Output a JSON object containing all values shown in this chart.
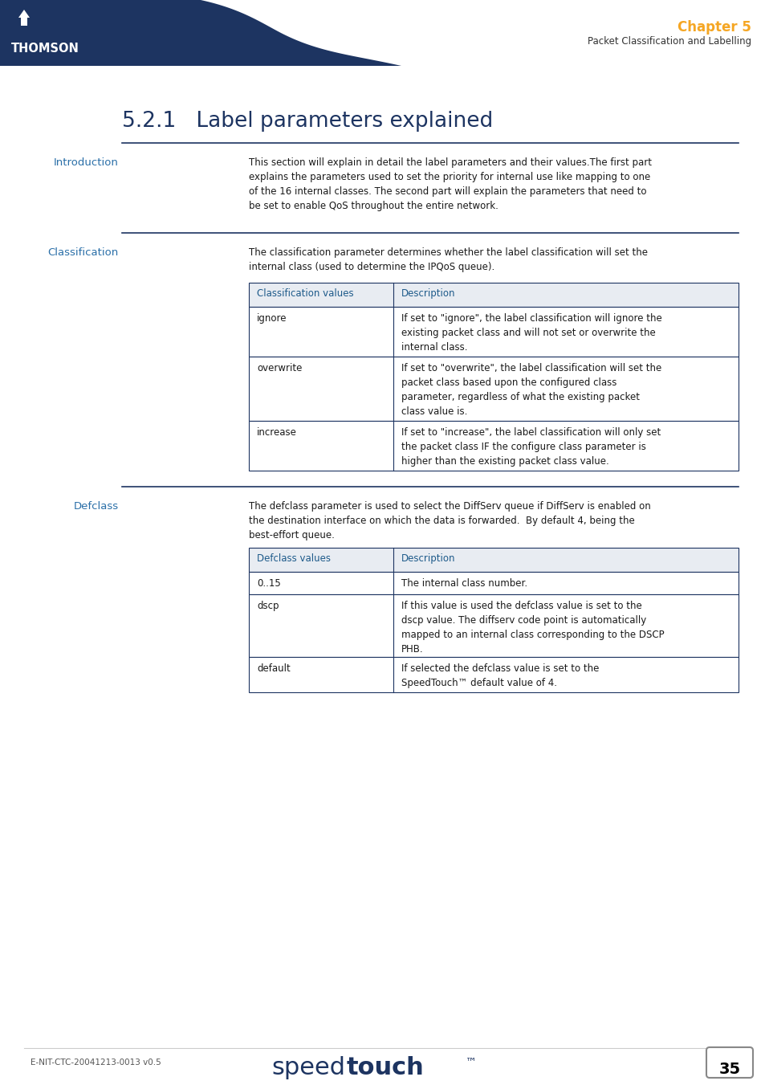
{
  "title": "5.2.1   Label parameters explained",
  "chapter_label": "Chapter 5",
  "chapter_sub": "Packet Classification and Labelling",
  "header_bg": "#1d3461",
  "header_orange": "#f5a623",
  "intro_label": "Introduction",
  "intro_text": "This section will explain in detail the label parameters and their values.The first part\nexplains the parameters used to set the priority for internal use like mapping to one\nof the 16 internal classes. The second part will explain the parameters that need to\nbe set to enable QoS throughout the entire network.",
  "class_label": "Classification",
  "class_text": "The classification parameter determines whether the label classification will set the\ninternal class (used to determine the IPQoS queue).",
  "class_table_header": [
    "Classification values",
    "Description"
  ],
  "class_table_rows": [
    [
      "ignore",
      "If set to \"ignore\", the label classification will ignore the\nexisting packet class and will not set or overwrite the\ninternal class."
    ],
    [
      "overwrite",
      "If set to \"overwrite\", the label classification will set the\npacket class based upon the configured class\nparameter, regardless of what the existing packet\nclass value is."
    ],
    [
      "increase",
      "If set to \"increase\", the label classification will only set\nthe packet class IF the configure class parameter is\nhigher than the existing packet class value."
    ]
  ],
  "defclass_label": "Defclass",
  "defclass_text": "The defclass parameter is used to select the DiffServ queue if DiffServ is enabled on\nthe destination interface on which the data is forwarded.  By default 4, being the\nbest-effort queue.",
  "defclass_table_header": [
    "Defclass values",
    "Description"
  ],
  "defclass_table_rows": [
    [
      "0..15",
      "The internal class number."
    ],
    [
      "dscp",
      "If this value is used the defclass value is set to the\ndscp value. The diffserv code point is automatically\nmapped to an internal class corresponding to the DSCP\nPHB."
    ],
    [
      "default",
      "If selected the defclass value is set to the\nSpeedTouch™ default value of 4."
    ]
  ],
  "footer_left": "E-NIT-CTC-20041213-0013 v0.5",
  "footer_page": "35",
  "table_header_bg": "#e8ecf2",
  "table_border": "#1d3461",
  "table_header_color": "#1d5a8a",
  "text_dark": "#1a1a1a",
  "label_color": "#2a6fa8",
  "title_color": "#1d3461",
  "line_color": "#1d3461",
  "sep_line_color": "#1d3461"
}
